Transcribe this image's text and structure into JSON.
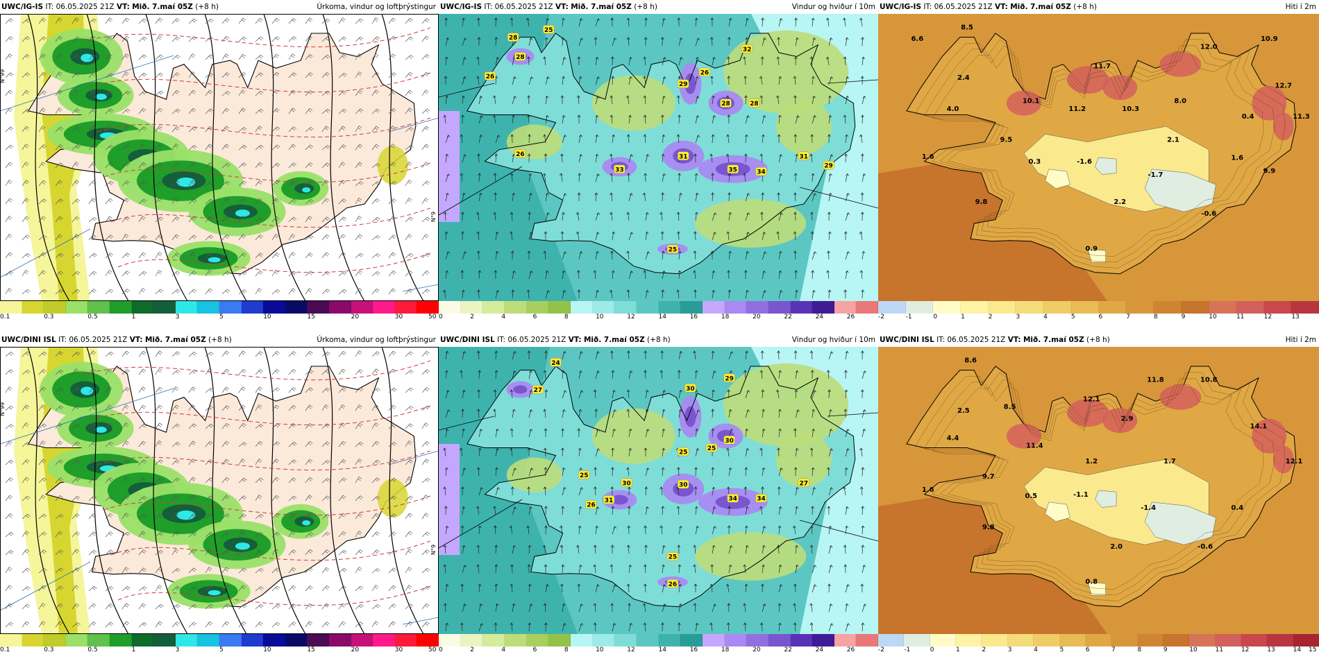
{
  "rows": [
    {
      "model": "UWC/IG-IS",
      "panels": [
        {
          "kind": "precip",
          "it": "IT: 06.05.2025 21Z",
          "vt_label": "VT:",
          "vt": "Mið. 7.maí 05Z",
          "lead": "(+8 h)",
          "title": "Úrkoma, vindur og loftþrýstingur"
        },
        {
          "kind": "wind",
          "it": "IT: 06.05.2025 21Z",
          "vt_label": "VT:",
          "vt": "Mið. 7.maí 05Z",
          "lead": "(+8 h)",
          "title": "Vindur og hviður í 10m"
        },
        {
          "kind": "temp",
          "it": "IT: 06.05.2025 21Z",
          "vt_label": "VT:",
          "vt": "Mið. 7.maí 05Z",
          "lead": "(+8 h)",
          "title": "Hiti í 2m"
        }
      ],
      "temp_labels": [
        {
          "t": "6.6",
          "lon": -24.2,
          "lat": 66.4
        },
        {
          "t": "8.5",
          "lon": -22.8,
          "lat": 66.55
        },
        {
          "t": "2.4",
          "lon": -22.9,
          "lat": 65.9
        },
        {
          "t": "4.0",
          "lon": -23.2,
          "lat": 65.5
        },
        {
          "t": "10.1",
          "lon": -21.0,
          "lat": 65.6
        },
        {
          "t": "11.7",
          "lon": -19.0,
          "lat": 66.05
        },
        {
          "t": "11.2",
          "lon": -19.7,
          "lat": 65.5
        },
        {
          "t": "10.3",
          "lon": -18.2,
          "lat": 65.5
        },
        {
          "t": "8.0",
          "lon": -16.8,
          "lat": 65.6
        },
        {
          "t": "12.0",
          "lon": -16.0,
          "lat": 66.3
        },
        {
          "t": "10.9",
          "lon": -14.3,
          "lat": 66.4
        },
        {
          "t": "12.7",
          "lon": -13.9,
          "lat": 65.8
        },
        {
          "t": "0.4",
          "lon": -14.9,
          "lat": 65.4
        },
        {
          "t": "11.3",
          "lon": -13.4,
          "lat": 65.4
        },
        {
          "t": "9.5",
          "lon": -21.7,
          "lat": 65.1
        },
        {
          "t": "2.1",
          "lon": -17.0,
          "lat": 65.1
        },
        {
          "t": "1.6",
          "lon": -23.9,
          "lat": 64.88
        },
        {
          "t": "0.3",
          "lon": -20.9,
          "lat": 64.82
        },
        {
          "t": "-1.6",
          "lon": -19.5,
          "lat": 64.82
        },
        {
          "t": "1.6",
          "lon": -15.2,
          "lat": 64.87
        },
        {
          "t": "9.9",
          "lon": -14.3,
          "lat": 64.7
        },
        {
          "t": "-1.7",
          "lon": -17.5,
          "lat": 64.65
        },
        {
          "t": "9.8",
          "lon": -22.4,
          "lat": 64.3
        },
        {
          "t": "2.2",
          "lon": -18.5,
          "lat": 64.3
        },
        {
          "t": "-0.6",
          "lon": -16.0,
          "lat": 64.15
        },
        {
          "t": "0.9",
          "lon": -19.3,
          "lat": 63.7
        }
      ],
      "wind_labels": [
        {
          "t": "28",
          "lon": -23.2,
          "lat": 66.45
        },
        {
          "t": "25",
          "lon": -22.2,
          "lat": 66.55
        },
        {
          "t": "28",
          "lon": -23.0,
          "lat": 66.2
        },
        {
          "t": "26",
          "lon": -23.85,
          "lat": 65.95
        },
        {
          "t": "32",
          "lon": -16.6,
          "lat": 66.3
        },
        {
          "t": "29",
          "lon": -18.4,
          "lat": 65.85
        },
        {
          "t": "26",
          "lon": -17.8,
          "lat": 66.0
        },
        {
          "t": "28",
          "lon": -17.2,
          "lat": 65.6
        },
        {
          "t": "28",
          "lon": -16.4,
          "lat": 65.6
        },
        {
          "t": "26",
          "lon": -23.0,
          "lat": 64.95
        },
        {
          "t": "33",
          "lon": -20.2,
          "lat": 64.75
        },
        {
          "t": "31",
          "lon": -18.4,
          "lat": 64.92
        },
        {
          "t": "35",
          "lon": -17.0,
          "lat": 64.75
        },
        {
          "t": "34",
          "lon": -16.2,
          "lat": 64.72
        },
        {
          "t": "31",
          "lon": -15.0,
          "lat": 64.92
        },
        {
          "t": "29",
          "lon": -14.3,
          "lat": 64.8
        },
        {
          "t": "25",
          "lon": -18.7,
          "lat": 63.72
        }
      ]
    },
    {
      "model": "UWC/DINI ISL",
      "panels": [
        {
          "kind": "precip",
          "it": "IT: 06.05.2025 21Z",
          "vt_label": "VT:",
          "vt": "Mið. 7.maí 05Z",
          "lead": "(+8 h)",
          "title": "Úrkoma, vindur og loftþrýstingur"
        },
        {
          "kind": "wind",
          "it": "IT: 06.05.2025 21Z",
          "vt_label": "VT:",
          "vt": "Mið. 7.maí 05Z",
          "lead": "(+8 h)",
          "title": "Vindur og hviður í 10m"
        },
        {
          "kind": "temp",
          "it": "IT: 06.05.2025 21Z",
          "vt_label": "VT:",
          "vt": "Mið. 7.maí 05Z",
          "lead": "(+8 h)",
          "title": "Hiti í 2m"
        }
      ],
      "temp_labels": [
        {
          "t": "8.6",
          "lon": -22.7,
          "lat": 66.55
        },
        {
          "t": "2.5",
          "lon": -22.9,
          "lat": 65.9
        },
        {
          "t": "8.5",
          "lon": -21.6,
          "lat": 65.95
        },
        {
          "t": "4.4",
          "lon": -23.2,
          "lat": 65.55
        },
        {
          "t": "12.1",
          "lon": -19.3,
          "lat": 66.05
        },
        {
          "t": "11.8",
          "lon": -17.5,
          "lat": 66.3
        },
        {
          "t": "10.8",
          "lon": -16.0,
          "lat": 66.3
        },
        {
          "t": "2.9",
          "lon": -18.3,
          "lat": 65.8
        },
        {
          "t": "14.1",
          "lon": -14.6,
          "lat": 65.7
        },
        {
          "t": "11.4",
          "lon": -20.9,
          "lat": 65.45
        },
        {
          "t": "1.2",
          "lon": -19.3,
          "lat": 65.25
        },
        {
          "t": "1.7",
          "lon": -17.1,
          "lat": 65.25
        },
        {
          "t": "12.1",
          "lon": -13.6,
          "lat": 65.25
        },
        {
          "t": "9.7",
          "lon": -22.2,
          "lat": 65.05
        },
        {
          "t": "1.6",
          "lon": -23.9,
          "lat": 64.88
        },
        {
          "t": "0.5",
          "lon": -21.0,
          "lat": 64.8
        },
        {
          "t": "-1.1",
          "lon": -19.6,
          "lat": 64.82
        },
        {
          "t": "-1.4",
          "lon": -17.7,
          "lat": 64.65
        },
        {
          "t": "0.4",
          "lon": -15.2,
          "lat": 64.65
        },
        {
          "t": "9.8",
          "lon": -22.2,
          "lat": 64.4
        },
        {
          "t": "2.0",
          "lon": -18.6,
          "lat": 64.15
        },
        {
          "t": "-0.6",
          "lon": -16.1,
          "lat": 64.15
        },
        {
          "t": "0.8",
          "lon": -19.3,
          "lat": 63.7
        }
      ],
      "wind_labels": [
        {
          "t": "24",
          "lon": -22.0,
          "lat": 66.55
        },
        {
          "t": "27",
          "lon": -22.5,
          "lat": 66.2
        },
        {
          "t": "30",
          "lon": -18.2,
          "lat": 66.22
        },
        {
          "t": "29",
          "lon": -17.1,
          "lat": 66.35
        },
        {
          "t": "30",
          "lon": -17.1,
          "lat": 65.55
        },
        {
          "t": "25",
          "lon": -18.4,
          "lat": 65.4
        },
        {
          "t": "25",
          "lon": -17.6,
          "lat": 65.45
        },
        {
          "t": "25",
          "lon": -21.2,
          "lat": 65.1
        },
        {
          "t": "30",
          "lon": -20.0,
          "lat": 65.0
        },
        {
          "t": "30",
          "lon": -18.4,
          "lat": 64.98
        },
        {
          "t": "31",
          "lon": -20.5,
          "lat": 64.78
        },
        {
          "t": "26",
          "lon": -21.0,
          "lat": 64.72
        },
        {
          "t": "34",
          "lon": -17.0,
          "lat": 64.8
        },
        {
          "t": "34",
          "lon": -16.2,
          "lat": 64.8
        },
        {
          "t": "27",
          "lon": -15.0,
          "lat": 65.0
        },
        {
          "t": "25",
          "lon": -18.7,
          "lat": 64.05
        },
        {
          "t": "26",
          "lon": -18.7,
          "lat": 63.7
        }
      ]
    }
  ],
  "colorbars": {
    "precip": {
      "colors": [
        "#f5f59a",
        "#d7d630",
        "#bfcc2a",
        "#9ae068",
        "#5fc24a",
        "#1f9e2a",
        "#0e6b2c",
        "#155e3a",
        "#2ee8e8",
        "#19c2e0",
        "#3a7af2",
        "#1f3ccf",
        "#0a0a9a",
        "#0a0a66",
        "#4a0a54",
        "#8a0a6a",
        "#c8107a",
        "#ff1a8a",
        "#ff1a3a",
        "#ff0000"
      ],
      "ticks": [
        "0.1",
        "0.3",
        "0.5",
        "1",
        "3",
        "5",
        "10",
        "15",
        "20",
        "30",
        "50"
      ]
    },
    "wind": {
      "colors": [
        "#fbfbe4",
        "#eaf5c2",
        "#d5ec9c",
        "#bddd7a",
        "#a8cf5e",
        "#94c248",
        "#b8f5f5",
        "#9debe8",
        "#7fddd8",
        "#5cc7c2",
        "#3eb3ae",
        "#2a9c98",
        "#c4a8ff",
        "#a98af2",
        "#9070e0",
        "#7a55d0",
        "#5a32b8",
        "#3f1c96",
        "#f5a3a3",
        "#e87878"
      ],
      "ticks": [
        "0",
        "2",
        "4",
        "6",
        "8",
        "10",
        "12",
        "14",
        "16",
        "18",
        "20",
        "22",
        "24",
        "26"
      ]
    },
    "temp": {
      "colors": [
        "#bcd8f5",
        "#dfeee0",
        "#fffcc8",
        "#fff4a6",
        "#fbe98e",
        "#f5dc7a",
        "#efcc66",
        "#e8bb54",
        "#e0a844",
        "#d8963a",
        "#cf8432",
        "#c7742c",
        "#d77458",
        "#d4605c",
        "#c8484c",
        "#b83640",
        "#a82430"
      ],
      "ticks_row1": [
        "-2",
        "-1",
        "0",
        "1",
        "2",
        "3",
        "4",
        "5",
        "6",
        "7",
        "8",
        "9",
        "10",
        "11",
        "12",
        "13"
      ],
      "ticks_row2": [
        "-2",
        "-1",
        "0",
        "1",
        "2",
        "3",
        "4",
        "5",
        "6",
        "7",
        "8",
        "9",
        "10",
        "11",
        "12",
        "13",
        "14",
        "15"
      ]
    }
  },
  "grid_labels": [
    "N°99",
    "N°9"
  ]
}
